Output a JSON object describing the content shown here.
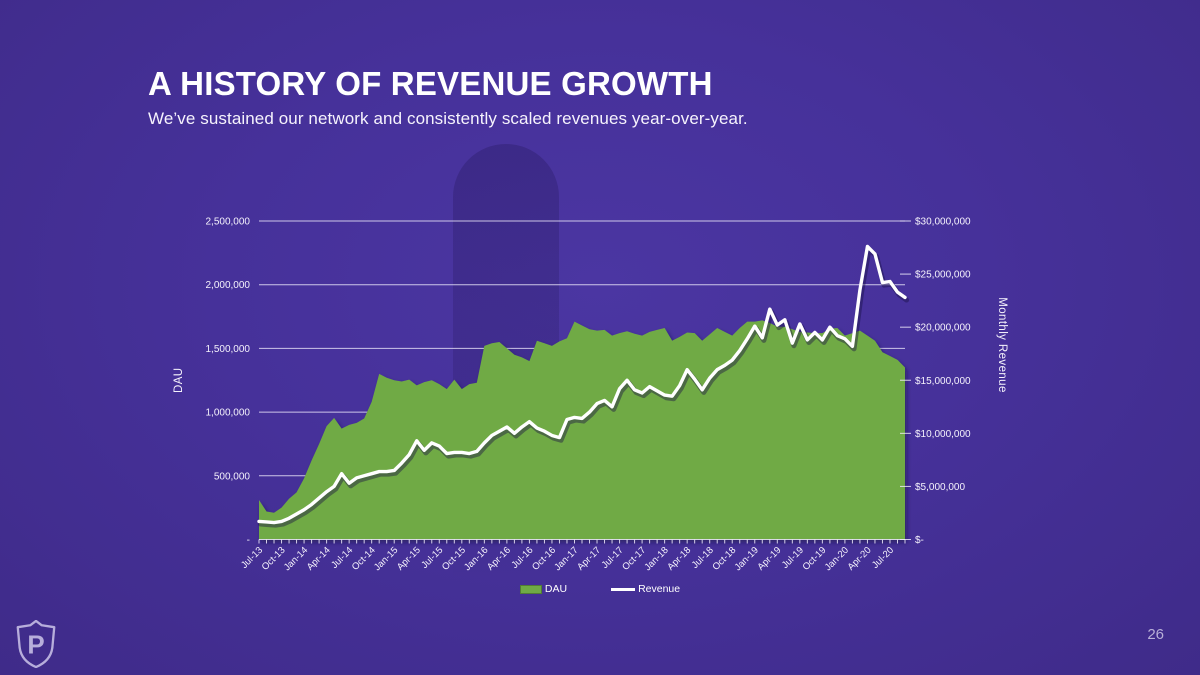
{
  "slide": {
    "title": "A HISTORY OF REVENUE GROWTH",
    "subtitle": "We’ve sustained our network and consistently scaled revenues year-over-year.",
    "page_number": "26",
    "logo_icon": "shield-p-logo"
  },
  "colors": {
    "background": "#46319A",
    "background_silhouette": "#3C2A82",
    "dau_green": "#6FAA45",
    "revenue_white": "#FFFFFF",
    "muted_lavender": "#B9B0D8",
    "gridline": "#F0ECFC"
  },
  "chart_data": {
    "type": "area+line",
    "title": "",
    "x": [
      "Jul-13",
      "Aug-13",
      "Sep-13",
      "Oct-13",
      "Nov-13",
      "Dec-13",
      "Jan-14",
      "Feb-14",
      "Mar-14",
      "Apr-14",
      "May-14",
      "Jun-14",
      "Jul-14",
      "Aug-14",
      "Sep-14",
      "Oct-14",
      "Nov-14",
      "Dec-14",
      "Jan-15",
      "Feb-15",
      "Mar-15",
      "Apr-15",
      "May-15",
      "Jun-15",
      "Jul-15",
      "Aug-15",
      "Sep-15",
      "Oct-15",
      "Nov-15",
      "Dec-15",
      "Jan-16",
      "Feb-16",
      "Mar-16",
      "Apr-16",
      "May-16",
      "Jun-16",
      "Jul-16",
      "Aug-16",
      "Sep-16",
      "Oct-16",
      "Nov-16",
      "Dec-16",
      "Jan-17",
      "Feb-17",
      "Mar-17",
      "Apr-17",
      "May-17",
      "Jun-17",
      "Jul-17",
      "Aug-17",
      "Sep-17",
      "Oct-17",
      "Nov-17",
      "Dec-17",
      "Jan-18",
      "Feb-18",
      "Mar-18",
      "Apr-18",
      "May-18",
      "Jun-18",
      "Jul-18",
      "Aug-18",
      "Sep-18",
      "Oct-18",
      "Nov-18",
      "Dec-18",
      "Jan-19",
      "Feb-19",
      "Mar-19",
      "Apr-19",
      "May-19",
      "Jun-19",
      "Jul-19",
      "Aug-19",
      "Sep-19",
      "Oct-19",
      "Nov-19",
      "Dec-19",
      "Jan-20",
      "Feb-20",
      "Mar-20",
      "Apr-20",
      "May-20",
      "Jun-20",
      "Jul-20",
      "Aug-20",
      "Sep-20"
    ],
    "x_tick_every": 3,
    "series": [
      {
        "name": "DAU",
        "type": "area",
        "axis": "left",
        "color": "#6FAA45",
        "values": [
          310000,
          220000,
          210000,
          250000,
          320000,
          370000,
          480000,
          620000,
          750000,
          890000,
          955000,
          870000,
          900000,
          915000,
          950000,
          1080000,
          1300000,
          1270000,
          1250000,
          1240000,
          1255000,
          1210000,
          1235000,
          1250000,
          1220000,
          1180000,
          1255000,
          1180000,
          1220000,
          1230000,
          1520000,
          1540000,
          1550000,
          1500000,
          1450000,
          1430000,
          1400000,
          1560000,
          1540000,
          1520000,
          1555000,
          1580000,
          1710000,
          1680000,
          1650000,
          1640000,
          1645000,
          1600000,
          1620000,
          1635000,
          1615000,
          1600000,
          1630000,
          1645000,
          1660000,
          1560000,
          1590000,
          1625000,
          1620000,
          1560000,
          1610000,
          1660000,
          1630000,
          1600000,
          1660000,
          1710000,
          1710000,
          1720000,
          1700000,
          1670000,
          1670000,
          1650000,
          1630000,
          1625000,
          1620000,
          1620000,
          1655000,
          1660000,
          1600000,
          1620000,
          1640000,
          1600000,
          1560000,
          1470000,
          1440000,
          1410000,
          1350000
        ]
      },
      {
        "name": "Revenue",
        "type": "line",
        "axis": "right",
        "color": "#FFFFFF",
        "values": [
          1700000,
          1650000,
          1600000,
          1700000,
          2000000,
          2400000,
          2800000,
          3300000,
          3900000,
          4500000,
          5000000,
          6200000,
          5300000,
          5800000,
          6000000,
          6200000,
          6400000,
          6400000,
          6500000,
          7200000,
          8000000,
          9300000,
          8400000,
          9100000,
          8800000,
          8100000,
          8200000,
          8200000,
          8100000,
          8300000,
          9100000,
          9800000,
          10200000,
          10600000,
          10000000,
          10600000,
          11100000,
          10500000,
          10200000,
          9800000,
          9600000,
          11300000,
          11500000,
          11400000,
          12000000,
          12800000,
          13100000,
          12500000,
          14200000,
          15000000,
          14100000,
          13800000,
          14400000,
          14000000,
          13600000,
          13500000,
          14500000,
          16000000,
          15100000,
          14100000,
          15200000,
          16000000,
          16400000,
          16900000,
          17800000,
          18900000,
          20100000,
          19000000,
          21700000,
          20200000,
          20700000,
          18500000,
          20300000,
          18800000,
          19500000,
          18800000,
          20000000,
          19200000,
          18900000,
          18200000,
          23500000,
          27600000,
          26900000,
          24200000,
          24300000,
          23300000,
          22800000
        ]
      }
    ],
    "left_axis": {
      "label": "DAU",
      "min": 0,
      "max": 2500000,
      "step": 500000,
      "ticks": [
        {
          "value": 2500000,
          "label": "2,500,000"
        },
        {
          "value": 2000000,
          "label": "2,000,000"
        },
        {
          "value": 1500000,
          "label": "1,500,000"
        },
        {
          "value": 1000000,
          "label": "1,000,000"
        },
        {
          "value": 500000,
          "label": "500,000"
        },
        {
          "value": 0,
          "label": "-"
        }
      ]
    },
    "right_axis": {
      "label": "Monthly Revenue",
      "min": 0,
      "max": 30000000,
      "step": 5000000,
      "ticks": [
        {
          "value": 30000000,
          "label": "$30,000,000"
        },
        {
          "value": 25000000,
          "label": "$25,000,000"
        },
        {
          "value": 20000000,
          "label": "$20,000,000"
        },
        {
          "value": 15000000,
          "label": "$15,000,000"
        },
        {
          "value": 10000000,
          "label": "$10,000,000"
        },
        {
          "value": 5000000,
          "label": "$5,000,000"
        },
        {
          "value": 0,
          "label": "$-"
        }
      ]
    },
    "grid": "horizontal-only",
    "legend_position": "bottom-center"
  }
}
